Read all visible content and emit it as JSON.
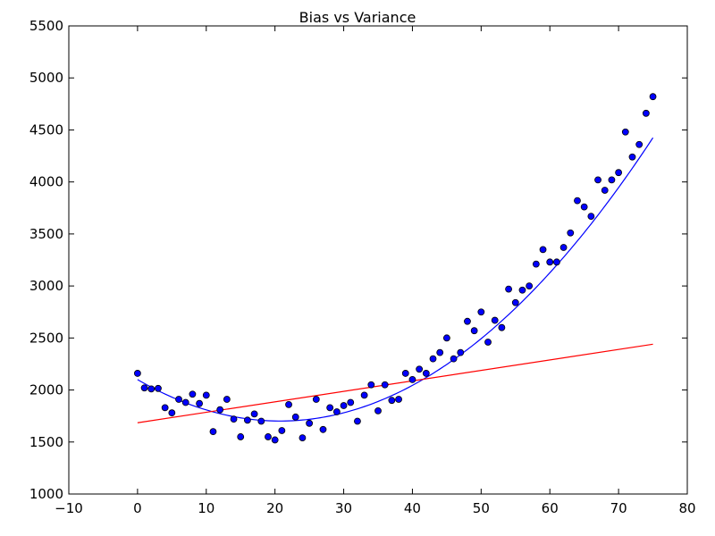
{
  "chart_data": {
    "type": "scatter",
    "title": "Bias vs Variance",
    "xlabel": "",
    "ylabel": "",
    "xlim": [
      -10,
      80
    ],
    "ylim": [
      1000,
      5500
    ],
    "xticks": [
      -10,
      0,
      10,
      20,
      30,
      40,
      50,
      60,
      70,
      80
    ],
    "yticks": [
      1000,
      1500,
      2000,
      2500,
      3000,
      3500,
      4000,
      4500,
      5000,
      5500
    ],
    "xtick_labels": [
      "−10",
      "0",
      "10",
      "20",
      "30",
      "40",
      "50",
      "60",
      "70",
      "80"
    ],
    "ytick_labels": [
      "1000",
      "1500",
      "2000",
      "2500",
      "3000",
      "3500",
      "4000",
      "4500",
      "5000",
      "5500"
    ],
    "grid": false,
    "colors": {
      "points": "#0000ff",
      "point_edge": "#000000",
      "quadratic_fit": "#0000ff",
      "linear_fit": "#ff0000"
    },
    "points": {
      "x": [
        0,
        1,
        2,
        3,
        4,
        5,
        6,
        7,
        8,
        9,
        10,
        11,
        12,
        13,
        14,
        15,
        16,
        17,
        18,
        19,
        20,
        21,
        22,
        23,
        24,
        25,
        26,
        27,
        28,
        29,
        30,
        31,
        32,
        33,
        34,
        35,
        36,
        37,
        38,
        39,
        40,
        41,
        42,
        43,
        44,
        45,
        46,
        47,
        48,
        49,
        50,
        51,
        52,
        53,
        54,
        55,
        56,
        57,
        58,
        59,
        60,
        61,
        62,
        63,
        64,
        65,
        66,
        67,
        68,
        69,
        70,
        71,
        72,
        73,
        74,
        75
      ],
      "y": [
        2160,
        2020,
        2010,
        2015,
        1830,
        1780,
        1910,
        1880,
        1960,
        1870,
        1950,
        1600,
        1810,
        1910,
        1720,
        1550,
        1710,
        1770,
        1700,
        1550,
        1520,
        1610,
        1860,
        1740,
        1540,
        1680,
        1910,
        1620,
        1830,
        1790,
        1850,
        1880,
        1700,
        1950,
        2050,
        1800,
        2050,
        1900,
        1910,
        2160,
        2100,
        2200,
        2160,
        2300,
        2360,
        2500,
        2300,
        2360,
        2660,
        2570,
        2750,
        2460,
        2670,
        2600,
        2970,
        2840,
        2960,
        3000,
        3210,
        3350,
        3230,
        3230,
        3370,
        3510,
        3820,
        3760,
        3670,
        4020,
        3920,
        4020,
        4090,
        4480,
        4240,
        4360,
        4660,
        4820
      ]
    },
    "lines": [
      {
        "kind": "quadratic",
        "x": [
          0,
          75
        ],
        "coefficients": [
          2100,
          -38.4,
          0.9253
        ]
      },
      {
        "kind": "linear",
        "x": [
          0,
          75
        ],
        "y": [
          1685,
          2440
        ]
      }
    ]
  }
}
